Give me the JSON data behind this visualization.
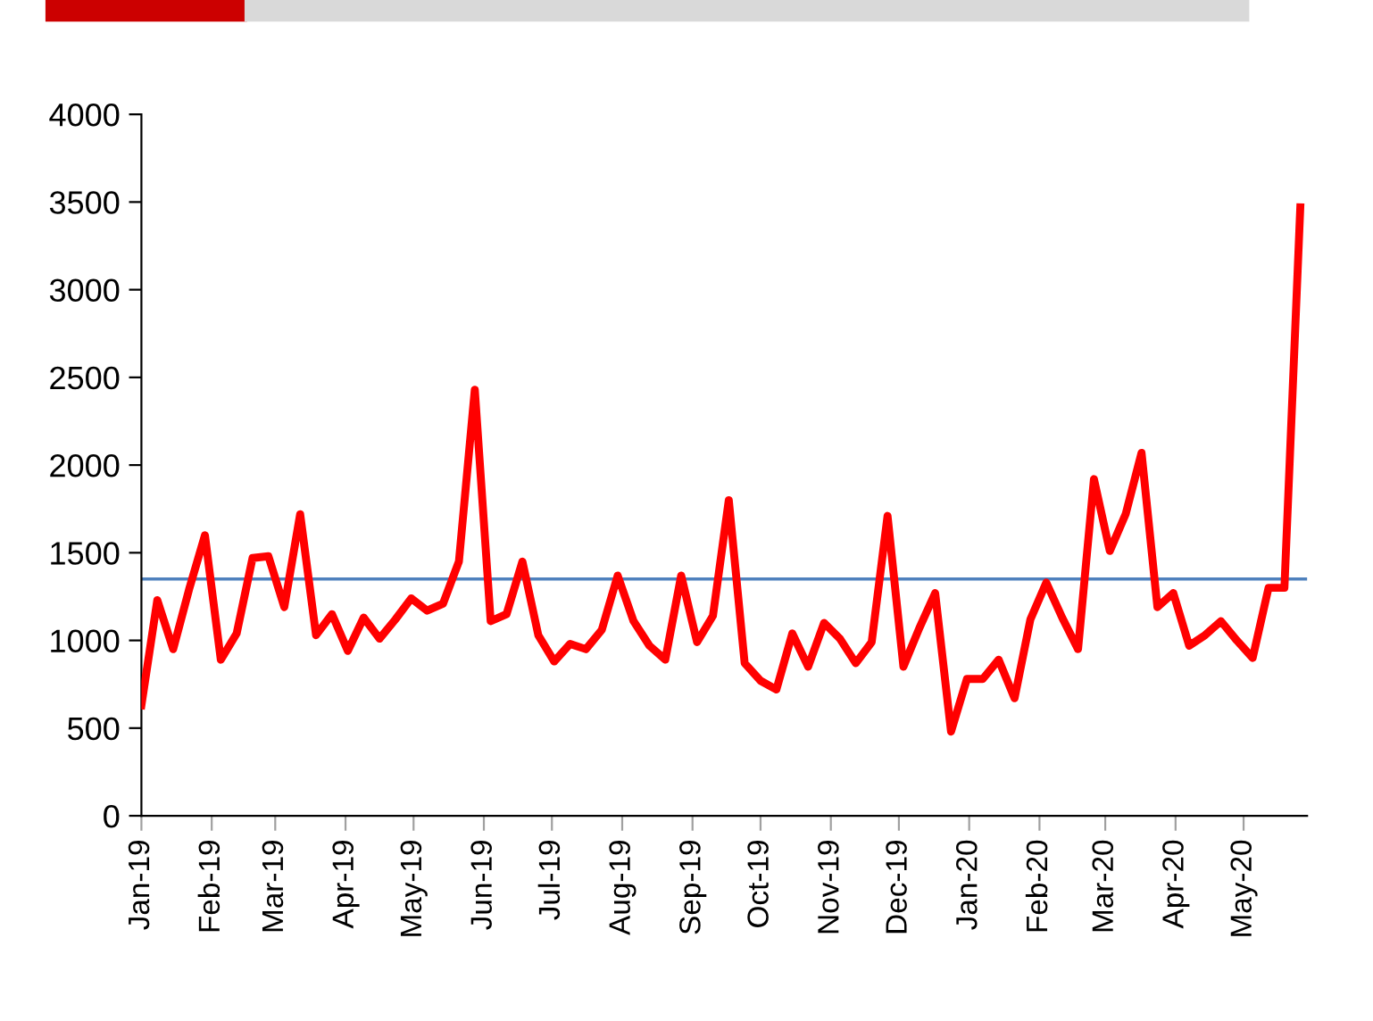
{
  "chart_data": {
    "type": "line",
    "x": [
      "2019-01-01",
      "2019-01-08",
      "2019-01-15",
      "2019-01-22",
      "2019-01-29",
      "2019-02-05",
      "2019-02-12",
      "2019-02-19",
      "2019-02-26",
      "2019-03-05",
      "2019-03-12",
      "2019-03-19",
      "2019-03-26",
      "2019-04-02",
      "2019-04-09",
      "2019-04-16",
      "2019-04-23",
      "2019-04-30",
      "2019-05-07",
      "2019-05-14",
      "2019-05-21",
      "2019-05-28",
      "2019-06-04",
      "2019-06-11",
      "2019-06-18",
      "2019-06-25",
      "2019-07-02",
      "2019-07-09",
      "2019-07-16",
      "2019-07-23",
      "2019-07-30",
      "2019-08-06",
      "2019-08-13",
      "2019-08-20",
      "2019-08-27",
      "2019-09-03",
      "2019-09-10",
      "2019-09-17",
      "2019-09-24",
      "2019-10-01",
      "2019-10-08",
      "2019-10-15",
      "2019-10-22",
      "2019-10-29",
      "2019-11-05",
      "2019-11-12",
      "2019-11-19",
      "2019-11-26",
      "2019-12-03",
      "2019-12-10",
      "2019-12-17",
      "2019-12-24",
      "2019-12-31",
      "2020-01-07",
      "2020-01-14",
      "2020-01-21",
      "2020-01-28",
      "2020-02-04",
      "2020-02-11",
      "2020-02-18",
      "2020-02-25",
      "2020-03-03",
      "2020-03-10",
      "2020-03-17",
      "2020-03-24",
      "2020-03-31",
      "2020-04-07",
      "2020-04-14",
      "2020-04-21",
      "2020-04-28",
      "2020-05-05",
      "2020-05-12",
      "2020-05-19",
      "2020-05-26"
    ],
    "series": [
      {
        "color": "#ff0000",
        "values": [
          630,
          1230,
          950,
          1290,
          1600,
          890,
          1040,
          1470,
          1480,
          1190,
          1720,
          1030,
          1150,
          940,
          1130,
          1010,
          1120,
          1240,
          1170,
          1210,
          1450,
          2430,
          1110,
          1150,
          1450,
          1030,
          880,
          980,
          950,
          1060,
          1370,
          1110,
          970,
          890,
          1370,
          990,
          1140,
          1800,
          870,
          770,
          720,
          1040,
          850,
          1100,
          1010,
          870,
          990,
          1710,
          850,
          1070,
          1270,
          480,
          780,
          780,
          890,
          670,
          1120,
          1330,
          1130,
          950,
          1920,
          1510,
          1720,
          2070,
          1190,
          1270,
          970,
          1030,
          1110,
          1000,
          900,
          1300,
          1300,
          3470
        ]
      }
    ],
    "ref_lines": [
      {
        "axis": "y",
        "value": 1350,
        "color": "#4f81bd"
      }
    ],
    "xlim": [
      "2019-01-01",
      "2020-05-29"
    ],
    "xticks": [
      {
        "value": "2019-01-01",
        "label": "Jan-19"
      },
      {
        "value": "2019-02-01",
        "label": "Feb-19"
      },
      {
        "value": "2019-03-01",
        "label": "Mar-19"
      },
      {
        "value": "2019-04-01",
        "label": "Apr-19"
      },
      {
        "value": "2019-05-01",
        "label": "May-19"
      },
      {
        "value": "2019-06-01",
        "label": "Jun-19"
      },
      {
        "value": "2019-07-01",
        "label": "Jul-19"
      },
      {
        "value": "2019-08-01",
        "label": "Aug-19"
      },
      {
        "value": "2019-09-01",
        "label": "Sep-19"
      },
      {
        "value": "2019-10-01",
        "label": "Oct-19"
      },
      {
        "value": "2019-11-01",
        "label": "Nov-19"
      },
      {
        "value": "2019-12-01",
        "label": "Dec-19"
      },
      {
        "value": "2020-01-01",
        "label": "Jan-20"
      },
      {
        "value": "2020-02-01",
        "label": "Feb-20"
      },
      {
        "value": "2020-03-01",
        "label": "Mar-20"
      },
      {
        "value": "2020-04-01",
        "label": "Apr-20"
      },
      {
        "value": "2020-05-01",
        "label": "May-20"
      }
    ],
    "ylim": [
      0,
      4000
    ],
    "yticks": [
      0,
      500,
      1000,
      1500,
      2000,
      2500,
      3000,
      3500,
      4000
    ],
    "grid": false,
    "legend": false,
    "marker": "none",
    "line_style": "solid"
  }
}
